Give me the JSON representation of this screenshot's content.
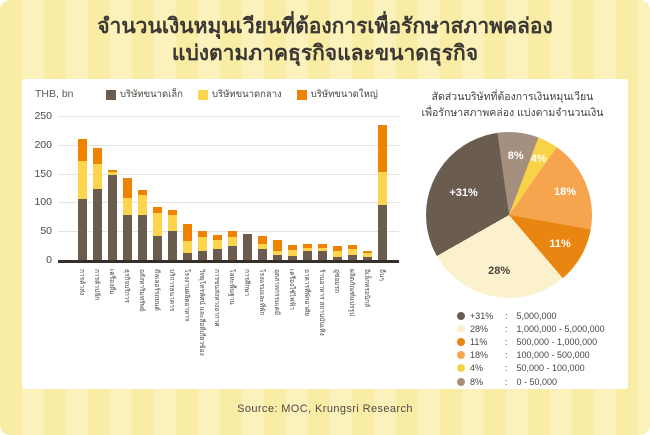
{
  "title_line1": "จำนวนเงินหมุนเวียนที่ต้องการเพื่อรักษาสภาพคล่อง",
  "title_line2": "แบ่งตามภาคธุรกิจและขนาดธุรกิจ",
  "unit_label": "THB, bn",
  "pie_title_line1": "สัดส่วนบริษัทที่ต้องการเงินหมุนเวียน",
  "pie_title_line2": "เพื่อรักษาสภาพคล่อง แบ่งตามจำนวนเงิน",
  "source": "Source: MOC, Krungsri Research",
  "colors": {
    "background_stripe_dark": "#f9eda5",
    "background_stripe_light": "#fbf2bb",
    "card": "#ffffff",
    "small_company": "#6b5c50",
    "medium_company": "#fcd44e",
    "large_company": "#ef8200"
  },
  "chart_data": [
    {
      "type": "bar",
      "stacked": true,
      "unit": "THB, bn",
      "ylim": [
        0,
        250
      ],
      "y_ticks": [
        0,
        50,
        100,
        150,
        200,
        250
      ],
      "grid": "horizontal",
      "legend_position": "top",
      "categories": [
        "การค้าส่ง",
        "การค้าปลีก",
        "เครื่องดื่ม",
        "ธุรกิจบริการ",
        "อสังหาริมทรัพย์",
        "ดีลเลอร์รถยนต์",
        "บริการธนาคาร",
        "โรงงานผลิตอาหาร",
        "วิทยุโทรทัศน์ และสื่อที่เกี่ยวข้อง",
        "การขนส่งทางอากาศ",
        "โลหะพื้นฐาน",
        "การศึกษา",
        "โรงแรมและที่พัก",
        "อุตสาหกรรมเคมี",
        "เครื่องใช้ไฟฟ้า",
        "อาคารที่พักอาศัย",
        "ร้านอาหาร สถานบันเทิง",
        "อู่ซ่อมรถ",
        "ผลิตภัณฑ์แปรรูป",
        "อิเล็กทรอนิกส์",
        "อื่นๆ"
      ],
      "series": [
        {
          "name": "บริษัทขนาดเล็ก",
          "color": "#6b5c50",
          "values": [
            105,
            124,
            148,
            78,
            78,
            41,
            50,
            12,
            16,
            19,
            24,
            45,
            19,
            9,
            7,
            15,
            15,
            6,
            9,
            5,
            95
          ]
        },
        {
          "name": "บริษัทขนาดกลาง",
          "color": "#fcd44e",
          "values": [
            67,
            42,
            4,
            30,
            35,
            41,
            28,
            21,
            24,
            15,
            16,
            0,
            9,
            6,
            11,
            6,
            6,
            9,
            10,
            7,
            57
          ]
        },
        {
          "name": "บริษัทขนาดใหญ่",
          "color": "#ef8200",
          "values": [
            38,
            29,
            4,
            34,
            9,
            10,
            8,
            29,
            11,
            9,
            10,
            0,
            14,
            20,
            8,
            7,
            7,
            9,
            7,
            4,
            83
          ]
        }
      ]
    },
    {
      "type": "pie",
      "title": "สัดส่วนบริษัทที่ต้องการเงินหมุนเวียน เพื่อรักษาสภาพคล่อง แบ่งตามจำนวนเงิน",
      "start_angle_deg": -8,
      "slices": [
        {
          "label": "8%",
          "value": 8,
          "range": "0 - 50,000",
          "color": "#a5907f",
          "label_color": "#ffffff"
        },
        {
          "label": "4%",
          "value": 4,
          "range": "50,000 - 100,000",
          "color": "#f8d348",
          "label_color": "#ffffff"
        },
        {
          "label": "18%",
          "value": 18,
          "range": "100,000 - 500,000",
          "color": "#f6a54e",
          "label_color": "#ffffff"
        },
        {
          "label": "11%",
          "value": 11,
          "range": "500,000 - 1,000,000",
          "color": "#e98511",
          "label_color": "#ffffff"
        },
        {
          "label": "28%",
          "value": 28,
          "range": "1,000,000 - 5,000,000",
          "color": "#fbf2cd",
          "label_color": "#4a443e"
        },
        {
          "label": "+31%",
          "value": 31,
          "range": "5,000,000",
          "color": "#6b5c50",
          "label_color": "#ffffff"
        }
      ],
      "legend_order": [
        "+31%",
        "28%",
        "11%",
        "18%",
        "4%",
        "8%"
      ]
    }
  ]
}
